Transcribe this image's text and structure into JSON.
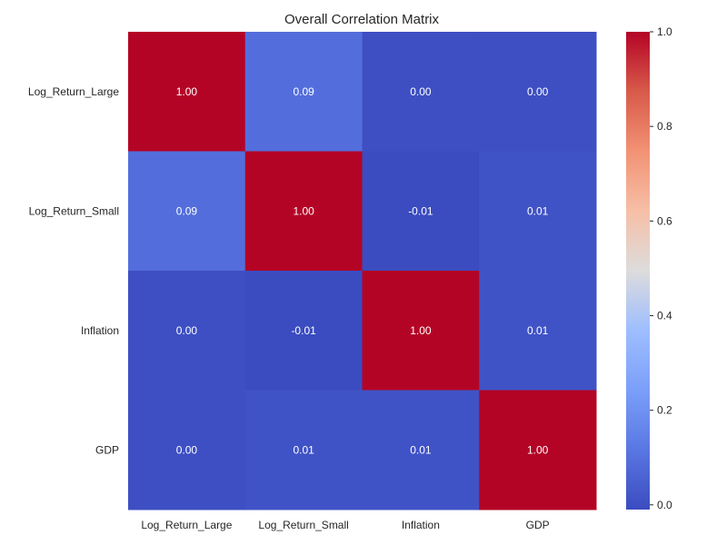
{
  "chart_data": {
    "type": "heatmap",
    "title": "Overall Correlation Matrix",
    "x_categories": [
      "Log_Return_Large",
      "Log_Return_Small",
      "Inflation",
      "GDP"
    ],
    "y_categories": [
      "Log_Return_Large",
      "Log_Return_Small",
      "Inflation",
      "GDP"
    ],
    "values": [
      [
        1.0,
        0.09,
        0.0,
        0.0
      ],
      [
        0.09,
        1.0,
        -0.01,
        0.01
      ],
      [
        0.0,
        -0.01,
        1.0,
        0.01
      ],
      [
        0.0,
        0.01,
        0.01,
        1.0
      ]
    ],
    "value_labels": [
      [
        "1.00",
        "0.09",
        "0.00",
        "0.00"
      ],
      [
        "0.09",
        "1.00",
        "-0.01",
        "0.01"
      ],
      [
        "0.00",
        "-0.01",
        "1.00",
        "0.01"
      ],
      [
        "0.00",
        "0.01",
        "0.01",
        "1.00"
      ]
    ],
    "colormap": "coolwarm",
    "colorbar": {
      "range": [
        -0.01,
        1.0
      ],
      "ticks": [
        0.0,
        0.2,
        0.4,
        0.6,
        0.8,
        1.0
      ],
      "tick_labels": [
        "0.0",
        "0.2",
        "0.4",
        "0.6",
        "0.8",
        "1.0"
      ]
    },
    "grid": false,
    "legend": "colorbar-right"
  }
}
